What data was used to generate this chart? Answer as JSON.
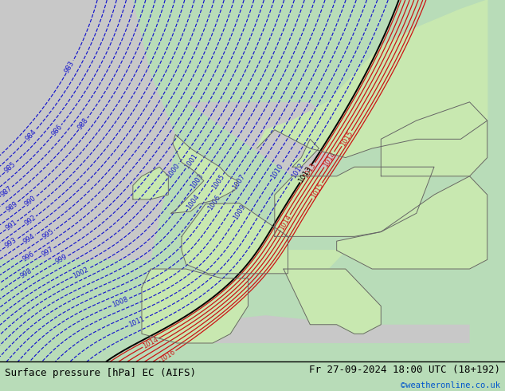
{
  "title_left": "Surface pressure [hPa] EC (AIFS)",
  "title_right": "Fr 27-09-2024 18:00 UTC (18+192)",
  "credit": "©weatheronline.co.uk",
  "bg_green": "#b8dcb8",
  "land_green": "#c8e8b0",
  "ocean_gray": "#c8c8c8",
  "blue_color": "#1414cc",
  "red_color": "#cc1414",
  "black_color": "#000000",
  "bar_color": "#d0e8d0",
  "figsize": [
    6.34,
    4.9
  ],
  "dpi": 100
}
